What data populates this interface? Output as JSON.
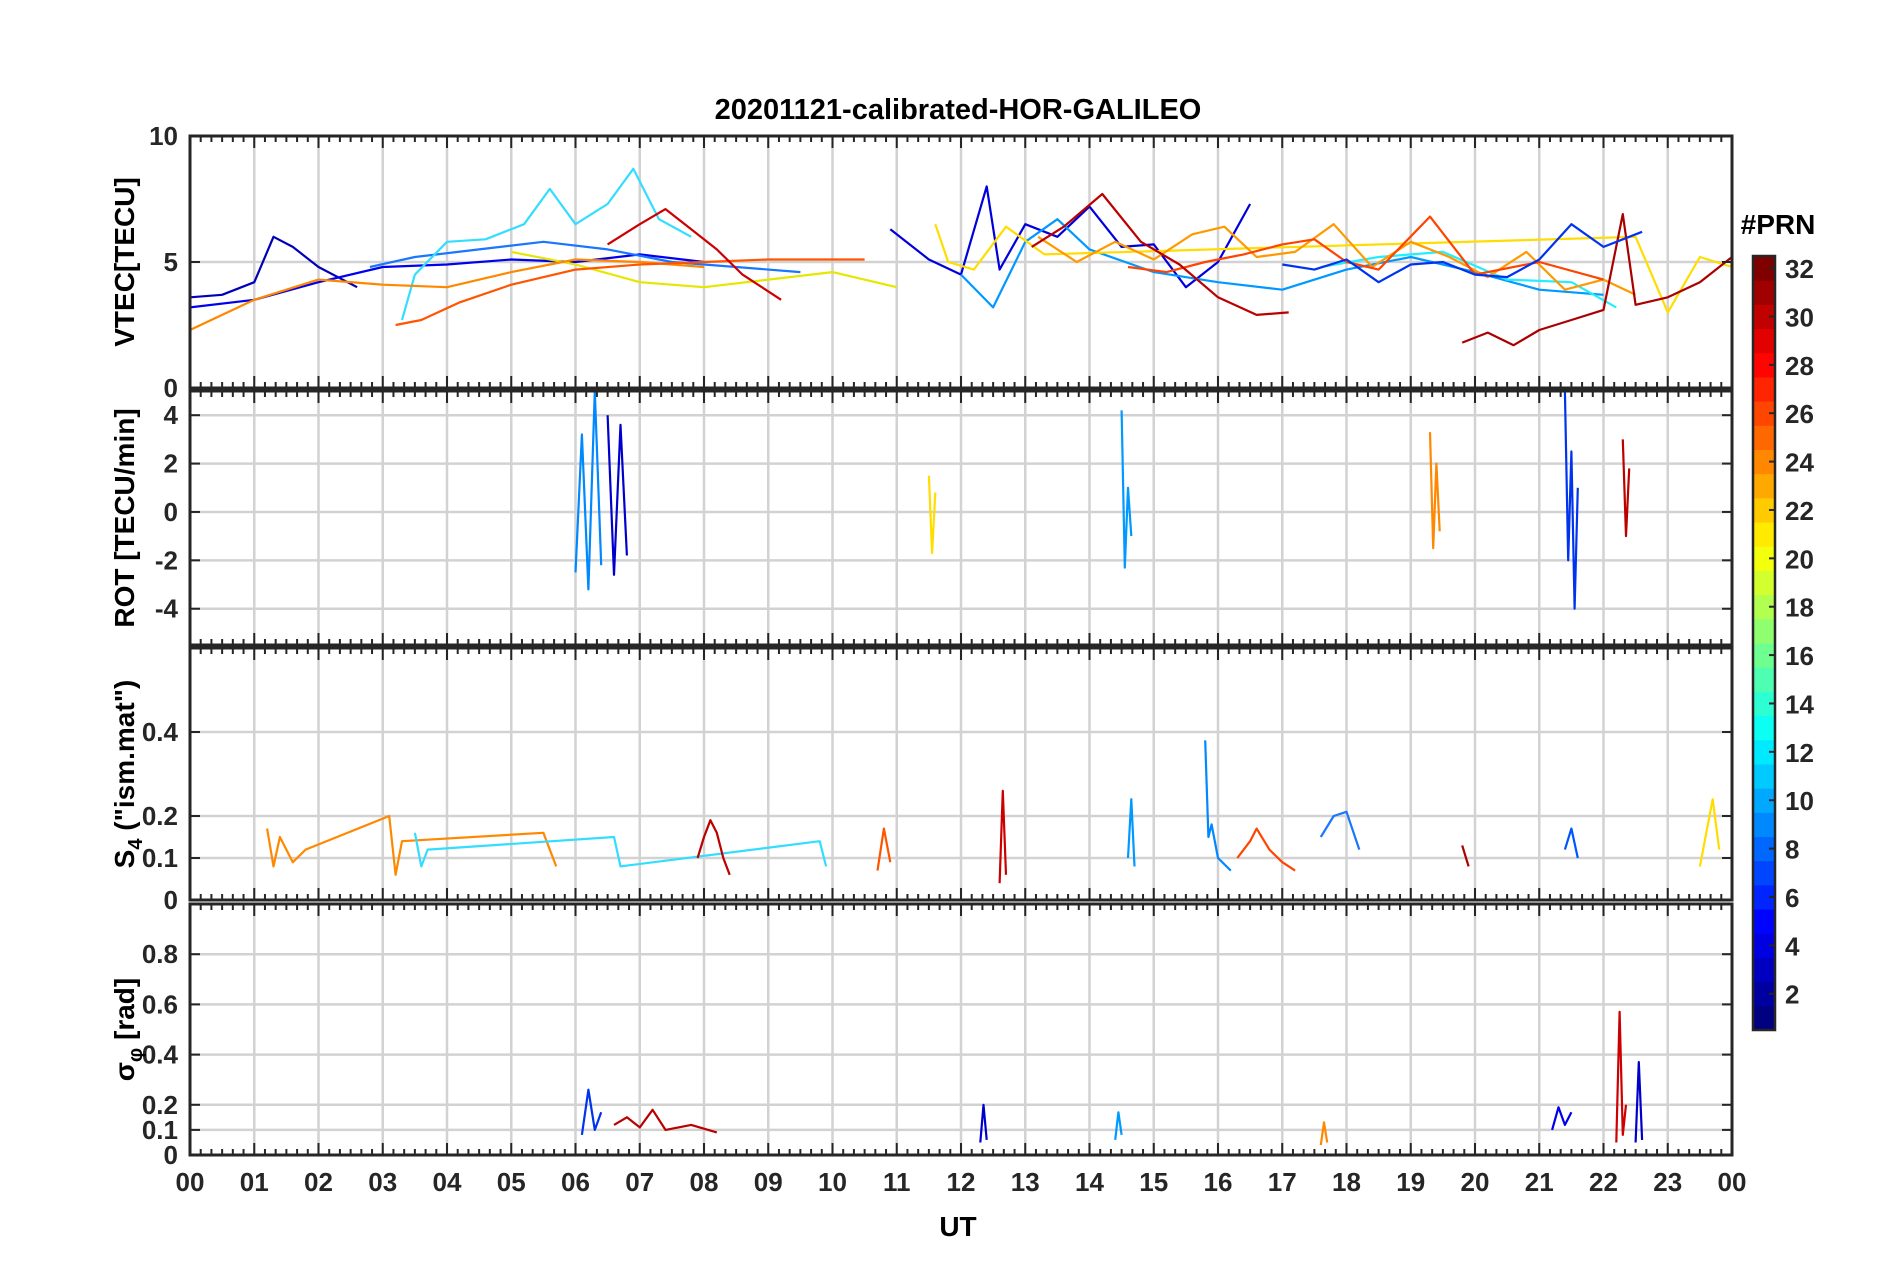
{
  "chart_data": {
    "type": "line",
    "title": "20201121-calibrated-HOR-GALILEO",
    "xlabel": "UT",
    "x_ticks": [
      "00",
      "01",
      "02",
      "03",
      "04",
      "05",
      "06",
      "07",
      "08",
      "09",
      "10",
      "11",
      "12",
      "13",
      "14",
      "15",
      "16",
      "17",
      "18",
      "19",
      "20",
      "21",
      "22",
      "23",
      "00"
    ],
    "xlim": [
      0,
      24
    ],
    "grid": true,
    "colorbar": {
      "label": "#PRN",
      "range": [
        1,
        32
      ],
      "colormap": "jet",
      "tick_labels": [
        "2",
        "4",
        "6",
        "8",
        "10",
        "12",
        "14",
        "16",
        "18",
        "20",
        "22",
        "24",
        "26",
        "28",
        "30",
        "32"
      ]
    },
    "panels": [
      {
        "id": "vtec",
        "ylabel": "VTEC[TECU]",
        "ylim": [
          0,
          10
        ],
        "yticks": [
          "0",
          "5",
          "10"
        ],
        "ytick_values": [
          0,
          5,
          10
        ],
        "series": [
          {
            "prn": 2,
            "color": "#0000bb",
            "x": [
              0,
              0.5,
              1,
              1.3,
              1.6,
              2,
              2.6
            ],
            "y": [
              3.6,
              3.7,
              4.2,
              6.0,
              5.6,
              4.8,
              4.0
            ]
          },
          {
            "prn": 4,
            "color": "#0000ee",
            "x": [
              0,
              1,
              2,
              3,
              4,
              5,
              6,
              7,
              8
            ],
            "y": [
              3.2,
              3.5,
              4.2,
              4.8,
              4.9,
              5.1,
              5.0,
              5.3,
              5.0
            ]
          },
          {
            "prn": 7,
            "color": "#1a75ff",
            "x": [
              2.8,
              3.5,
              4.5,
              5.5,
              6.5,
              7.5,
              8.5,
              9.5
            ],
            "y": [
              4.8,
              5.2,
              5.5,
              5.8,
              5.5,
              5.0,
              4.8,
              4.6
            ]
          },
          {
            "prn": 11,
            "color": "#33ddff",
            "x": [
              3.3,
              3.5,
              4.0,
              4.6,
              5.2,
              5.6,
              6.0,
              6.5,
              6.9,
              7.3,
              7.8
            ],
            "y": [
              2.7,
              4.5,
              5.8,
              5.9,
              6.5,
              7.9,
              6.5,
              7.3,
              8.7,
              6.7,
              6.0
            ]
          },
          {
            "prn": 19,
            "color": "#e6e600",
            "x": [
              5,
              6,
              7,
              8,
              9,
              10,
              11
            ],
            "y": [
              5.4,
              4.9,
              4.2,
              4.0,
              4.3,
              4.6,
              4.0
            ]
          },
          {
            "prn": 24,
            "color": "#ff8800",
            "x": [
              0,
              1,
              2,
              3,
              4,
              5,
              6,
              7,
              8
            ],
            "y": [
              2.3,
              3.5,
              4.3,
              4.1,
              4.0,
              4.6,
              5.1,
              5.0,
              4.8
            ]
          },
          {
            "prn": 25,
            "color": "#ff5500",
            "x": [
              3.2,
              3.6,
              4.2,
              5,
              6,
              7,
              8,
              9,
              10.5
            ],
            "y": [
              2.5,
              2.7,
              3.4,
              4.1,
              4.7,
              4.9,
              5.0,
              5.1,
              5.1
            ]
          },
          {
            "prn": 29,
            "color": "#cc0000",
            "x": [
              6.5,
              7,
              7.4,
              7.8,
              8.2,
              8.6,
              9.2
            ],
            "y": [
              5.7,
              6.5,
              7.1,
              6.3,
              5.5,
              4.5,
              3.5
            ]
          },
          {
            "prn": 3,
            "color": "#0000dd",
            "x": [
              10.9,
              11.5,
              12,
              12.4,
              12.6,
              13,
              13.5,
              14,
              14.5,
              15,
              15.5,
              16,
              16.5
            ],
            "y": [
              6.3,
              5.1,
              4.5,
              8.0,
              4.7,
              6.5,
              6.0,
              7.2,
              5.6,
              5.7,
              4.0,
              5.0,
              7.3
            ]
          },
          {
            "prn": 10,
            "color": "#0099ff",
            "x": [
              12,
              12.5,
              13,
              13.5,
              14,
              15,
              16,
              17,
              18,
              19,
              20,
              21,
              22
            ],
            "y": [
              4.5,
              3.2,
              5.8,
              6.7,
              5.5,
              4.6,
              4.2,
              3.9,
              4.7,
              5.2,
              4.6,
              3.9,
              3.7
            ]
          },
          {
            "prn": 13,
            "color": "#22eeff",
            "x": [
              17.6,
              18.5,
              19.5,
              20.5,
              21.5,
              22.2
            ],
            "y": [
              4.8,
              5.2,
              5.4,
              4.3,
              4.2,
              3.2
            ]
          },
          {
            "prn": 20,
            "color": "#ffdd00",
            "x": [
              11.6,
              11.8,
              12.2,
              12.7,
              13.3,
              22.5,
              23,
              23.5,
              24
            ],
            "y": [
              6.5,
              5.0,
              4.7,
              6.4,
              5.3,
              6.0,
              3.0,
              5.2,
              4.8
            ]
          },
          {
            "prn": 23,
            "color": "#ff9900",
            "x": [
              13.2,
              13.8,
              14.4,
              15,
              15.6,
              16.1,
              16.6,
              17.2,
              17.8,
              18.4,
              19,
              19.6,
              20.2,
              20.8,
              21.4,
              22,
              22.5
            ],
            "y": [
              6.0,
              5.0,
              5.8,
              5.1,
              6.1,
              6.4,
              5.2,
              5.4,
              6.5,
              4.8,
              5.8,
              5.2,
              4.4,
              5.4,
              3.9,
              4.3,
              3.7
            ]
          },
          {
            "prn": 26,
            "color": "#ff4400",
            "x": [
              14.6,
              15.2,
              15.8,
              16.4,
              17,
              17.5,
              18,
              18.5,
              19.3,
              20,
              21,
              22
            ],
            "y": [
              4.8,
              4.6,
              5.0,
              5.3,
              5.7,
              5.9,
              5.0,
              4.7,
              6.8,
              4.5,
              5.0,
              4.3
            ]
          },
          {
            "prn": 30,
            "color": "#bb0000",
            "x": [
              13.1,
              13.6,
              14.2,
              14.8,
              15.4,
              16,
              16.6,
              17.1
            ],
            "y": [
              5.6,
              6.4,
              7.7,
              5.8,
              4.9,
              3.6,
              2.9,
              3.0
            ]
          },
          {
            "prn": 31,
            "color": "#aa0000",
            "x": [
              19.8,
              20.2,
              20.6,
              21,
              21.5,
              22,
              22.3,
              22.5,
              23,
              23.5,
              24
            ],
            "y": [
              1.8,
              2.2,
              1.7,
              2.3,
              2.7,
              3.1,
              6.9,
              3.3,
              3.6,
              4.2,
              5.2
            ]
          },
          {
            "prn": 5,
            "color": "#0033ee",
            "x": [
              17,
              17.5,
              18,
              18.5,
              19,
              19.5,
              20,
              20.5,
              21,
              21.5,
              22,
              22.6
            ],
            "y": [
              4.9,
              4.7,
              5.1,
              4.2,
              4.9,
              5.0,
              4.5,
              4.4,
              5.1,
              6.5,
              5.6,
              6.2
            ]
          }
        ]
      },
      {
        "id": "rot",
        "ylabel": "ROT [TECU/min]",
        "ylim": [
          -5.5,
          5
        ],
        "yticks": [
          "-4",
          "-2",
          "0",
          "2",
          "4"
        ],
        "ytick_values": [
          -4,
          -2,
          0,
          2,
          4
        ],
        "series": [
          {
            "prn": 9,
            "color": "#0088ff",
            "x": [
              6.0,
              6.1,
              6.2,
              6.3,
              6.4
            ],
            "y": [
              -2.5,
              3.2,
              -3.2,
              5.0,
              -2.2
            ]
          },
          {
            "prn": 3,
            "color": "#0000cc",
            "x": [
              6.5,
              6.6,
              6.7,
              6.8
            ],
            "y": [
              4.0,
              -2.6,
              3.6,
              -1.8
            ]
          },
          {
            "prn": 10,
            "color": "#0099ff",
            "x": [
              14.5,
              14.55,
              14.6,
              14.65
            ],
            "y": [
              4.2,
              -2.3,
              1.0,
              -1.0
            ]
          },
          {
            "prn": 5,
            "color": "#0033ee",
            "x": [
              21.4,
              21.45,
              21.5,
              21.55,
              21.6
            ],
            "y": [
              5.0,
              -2.0,
              2.5,
              -4.0,
              1.0
            ]
          },
          {
            "prn": 24,
            "color": "#ff8800",
            "x": [
              19.3,
              19.35,
              19.4,
              19.45
            ],
            "y": [
              3.3,
              -1.5,
              2.0,
              -0.8
            ]
          },
          {
            "prn": 30,
            "color": "#bb0000",
            "x": [
              22.3,
              22.35,
              22.4
            ],
            "y": [
              3.0,
              -1.0,
              1.8
            ]
          },
          {
            "prn": 20,
            "color": "#ffdd00",
            "x": [
              11.5,
              11.55,
              11.6
            ],
            "y": [
              1.5,
              -1.7,
              0.8
            ]
          }
        ]
      },
      {
        "id": "s4",
        "ylabel": "S_4 (\"ism.mat\")",
        "ylim": [
          0,
          0.6
        ],
        "yticks": [
          "0",
          "0.1",
          "0.2",
          "0.4"
        ],
        "ytick_values": [
          0,
          0.1,
          0.2,
          0.4
        ],
        "series": [
          {
            "prn": 24,
            "color": "#ff8800",
            "x": [
              1.2,
              1.3,
              1.4,
              1.6,
              1.8,
              3.1,
              3.2,
              3.3,
              5.5,
              5.7
            ],
            "y": [
              0.17,
              0.08,
              0.15,
              0.09,
              0.12,
              0.2,
              0.06,
              0.14,
              0.16,
              0.08
            ]
          },
          {
            "prn": 11,
            "color": "#33ddff",
            "x": [
              3.5,
              3.6,
              3.7,
              6.6,
              6.7,
              9.8,
              9.9
            ],
            "y": [
              0.16,
              0.08,
              0.12,
              0.15,
              0.08,
              0.14,
              0.08
            ]
          },
          {
            "prn": 30,
            "color": "#bb0000",
            "x": [
              7.9,
              8.0,
              8.1,
              8.2,
              8.3,
              8.4
            ],
            "y": [
              0.1,
              0.15,
              0.19,
              0.16,
              0.1,
              0.06
            ]
          },
          {
            "prn": 25,
            "color": "#ff5500",
            "x": [
              10.7,
              10.8,
              10.9
            ],
            "y": [
              0.07,
              0.17,
              0.09
            ]
          },
          {
            "prn": 29,
            "color": "#cc0000",
            "x": [
              12.6,
              12.65,
              12.7
            ],
            "y": [
              0.04,
              0.26,
              0.06
            ]
          },
          {
            "prn": 10,
            "color": "#0099ff",
            "x": [
              14.6,
              14.65,
              14.7
            ],
            "y": [
              0.1,
              0.24,
              0.08
            ]
          },
          {
            "prn": 9,
            "color": "#0088ff",
            "x": [
              15.8,
              15.85,
              15.9,
              16.0,
              16.2
            ],
            "y": [
              0.38,
              0.15,
              0.18,
              0.1,
              0.07
            ]
          },
          {
            "prn": 26,
            "color": "#ff4400",
            "x": [
              16.3,
              16.5,
              16.6,
              16.8,
              17.0,
              17.2
            ],
            "y": [
              0.1,
              0.14,
              0.17,
              0.12,
              0.09,
              0.07
            ]
          },
          {
            "prn": 7,
            "color": "#1a75ff",
            "x": [
              17.6,
              17.8,
              18.0,
              18.2
            ],
            "y": [
              0.15,
              0.2,
              0.21,
              0.12
            ]
          },
          {
            "prn": 31,
            "color": "#aa0000",
            "x": [
              19.8,
              19.9
            ],
            "y": [
              0.13,
              0.08
            ]
          },
          {
            "prn": 6,
            "color": "#0055ff",
            "x": [
              21.4,
              21.5,
              21.6
            ],
            "y": [
              0.12,
              0.17,
              0.1
            ]
          },
          {
            "prn": 20,
            "color": "#ffdd00",
            "x": [
              23.5,
              23.6,
              23.7,
              23.8
            ],
            "y": [
              0.08,
              0.16,
              0.24,
              0.12
            ]
          }
        ]
      },
      {
        "id": "sigma",
        "ylabel": "σ_φ [rad]",
        "ylim": [
          0,
          1
        ],
        "yticks": [
          "0",
          "0.1",
          "0.2",
          "0.4",
          "0.6",
          "0.8"
        ],
        "ytick_values": [
          0,
          0.1,
          0.2,
          0.4,
          0.6,
          0.8
        ],
        "series": [
          {
            "prn": 5,
            "color": "#0033ee",
            "x": [
              6.1,
              6.2,
              6.3,
              6.4
            ],
            "y": [
              0.08,
              0.26,
              0.1,
              0.17
            ]
          },
          {
            "prn": 30,
            "color": "#bb0000",
            "x": [
              6.6,
              6.8,
              7.0,
              7.2,
              7.4,
              7.8,
              8.2
            ],
            "y": [
              0.12,
              0.15,
              0.11,
              0.18,
              0.1,
              0.12,
              0.09
            ]
          },
          {
            "prn": 3,
            "color": "#0000cc",
            "x": [
              12.3,
              12.35,
              12.4
            ],
            "y": [
              0.05,
              0.2,
              0.06
            ]
          },
          {
            "prn": 10,
            "color": "#0099ff",
            "x": [
              14.4,
              14.45,
              14.5
            ],
            "y": [
              0.06,
              0.17,
              0.08
            ]
          },
          {
            "prn": 24,
            "color": "#ff8800",
            "x": [
              17.6,
              17.65,
              17.7
            ],
            "y": [
              0.04,
              0.13,
              0.05
            ]
          },
          {
            "prn": 4,
            "color": "#0000ee",
            "x": [
              21.2,
              21.3,
              21.4,
              21.5
            ],
            "y": [
              0.1,
              0.19,
              0.12,
              0.17
            ]
          },
          {
            "prn": 29,
            "color": "#cc0000",
            "x": [
              22.2,
              22.25,
              22.3,
              22.35
            ],
            "y": [
              0.05,
              0.57,
              0.08,
              0.2
            ]
          },
          {
            "prn": 3,
            "color": "#0000cc",
            "x": [
              22.5,
              22.55,
              22.6
            ],
            "y": [
              0.05,
              0.37,
              0.06
            ]
          }
        ]
      }
    ]
  }
}
